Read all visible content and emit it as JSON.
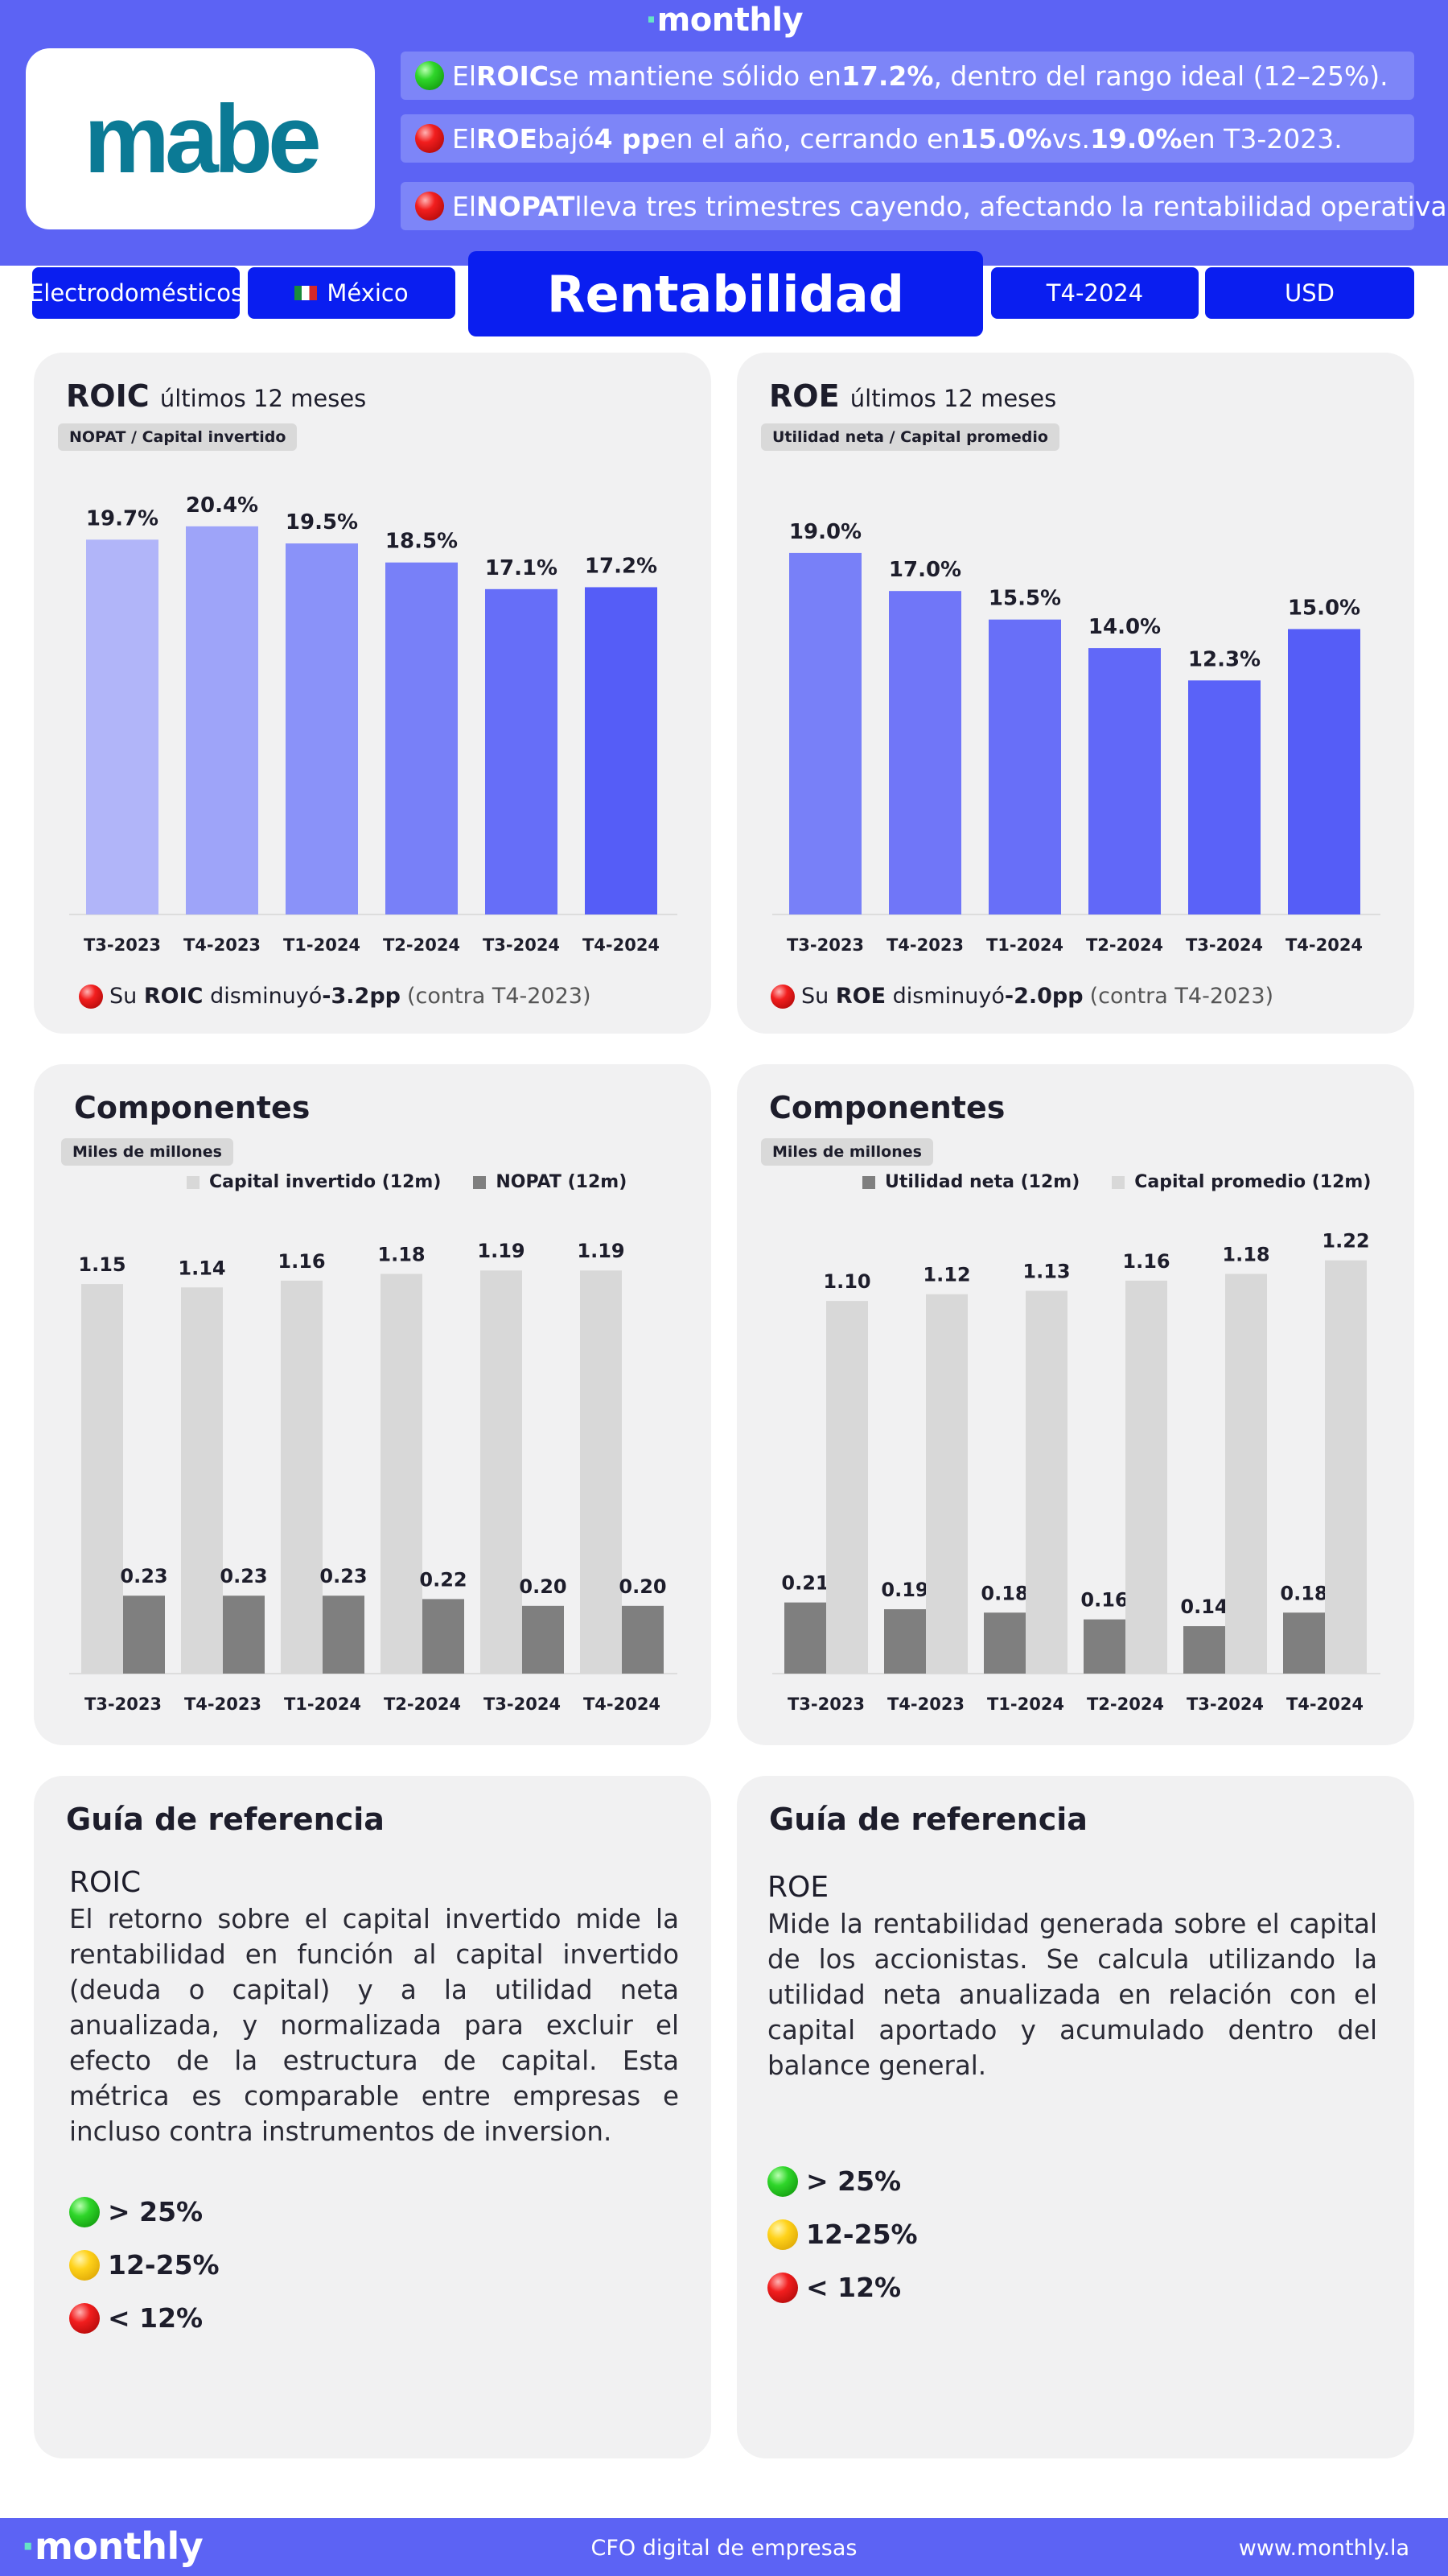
{
  "header": {
    "brand": "monthly",
    "company_logo": "mabe",
    "insights": [
      {
        "status": "green",
        "pre": "El ",
        "metric": "ROIC",
        "mid": " se mantiene sólido en ",
        "value": "17.2%",
        "post": ", dentro del rango ideal (12–25%)."
      },
      {
        "status": "red",
        "pre": "El ",
        "metric": "ROE",
        "mid": " bajó ",
        "value": "4 pp",
        "post": " en el año, cerrando en ",
        "value2": "15.0%",
        "post2": " vs. ",
        "value3": "19.0%",
        "post3": " en T3-2023."
      },
      {
        "status": "red",
        "pre": "El ",
        "metric": "NOPAT",
        "mid": " lleva tres trimestres cayendo, afectando la rentabilidad operativa."
      }
    ],
    "pills": {
      "sector": "Electrodomésticos",
      "country": "México",
      "title": "Rentabilidad",
      "period": "T4-2024",
      "currency": "USD"
    }
  },
  "roic_panel": {
    "title": "ROIC",
    "subtitle": "últimos 12 meses",
    "tag": "NOPAT / Capital invertido",
    "summary": {
      "status": "red",
      "pre": "Su ",
      "metric": "ROIC",
      "mid": " disminuyó ",
      "value": "-3.2pp",
      "post": "(contra T4-2023)"
    }
  },
  "roe_panel": {
    "title": "ROE",
    "subtitle": "últimos 12 meses",
    "tag": "Utilidad neta / Capital promedio",
    "summary": {
      "status": "red",
      "pre": "Su ",
      "metric": "ROE",
      "mid": " disminuyó ",
      "value": "-2.0pp",
      "post": "(contra T4-2023)"
    }
  },
  "comp_left": {
    "title": "Componentes",
    "tag": "Miles de millones"
  },
  "comp_right": {
    "title": "Componentes",
    "tag": "Miles de millones"
  },
  "chart_data": [
    {
      "type": "bar",
      "title": "ROIC",
      "categories": [
        "T3-2023",
        "T4-2023",
        "T1-2024",
        "T2-2024",
        "T3-2024",
        "T4-2024"
      ],
      "values": [
        19.7,
        20.4,
        19.5,
        18.5,
        17.1,
        17.2
      ],
      "labels": [
        "19.7%",
        "20.4%",
        "19.5%",
        "18.5%",
        "17.1%",
        "17.2%"
      ],
      "colors": [
        "#b1b5f9",
        "#9ea4f9",
        "#8a92f9",
        "#7880f8",
        "#666ef8",
        "#555df7"
      ],
      "ylim": [
        0,
        22
      ]
    },
    {
      "type": "bar",
      "title": "ROE",
      "categories": [
        "T3-2023",
        "T4-2023",
        "T1-2024",
        "T2-2024",
        "T3-2024",
        "T4-2024"
      ],
      "values": [
        19.0,
        17.0,
        15.5,
        14.0,
        12.3,
        15.0
      ],
      "labels": [
        "19.0%",
        "17.0%",
        "15.5%",
        "14.0%",
        "12.3%",
        "15.0%"
      ],
      "colors": [
        "#7880f8",
        "#7076f8",
        "#686ff8",
        "#6168f8",
        "#5a62f8",
        "#555df7"
      ],
      "ylim": [
        0,
        22
      ]
    },
    {
      "type": "bar",
      "categories": [
        "T3-2023",
        "T4-2023",
        "T1-2024",
        "T2-2024",
        "T3-2024",
        "T4-2024"
      ],
      "series": [
        {
          "name": "Capital invertido (12m)",
          "color": "#d8d8d8",
          "values": [
            1.15,
            1.14,
            1.16,
            1.18,
            1.19,
            1.19
          ],
          "labels": [
            "1.15",
            "1.14",
            "1.16",
            "1.18",
            "1.19",
            "1.19"
          ]
        },
        {
          "name": "NOPAT (12m)",
          "color": "#7f7f7f",
          "values": [
            0.23,
            0.23,
            0.23,
            0.22,
            0.2,
            0.2
          ],
          "labels": [
            "0.23",
            "0.23",
            "0.23",
            "0.22",
            "0.20",
            "0.20"
          ]
        }
      ],
      "ylim": [
        0,
        1.25
      ],
      "legend": "top"
    },
    {
      "type": "bar",
      "categories": [
        "T3-2023",
        "T4-2023",
        "T1-2024",
        "T2-2024",
        "T3-2024",
        "T4-2024"
      ],
      "series": [
        {
          "name": "Utilidad neta (12m)",
          "color": "#7f7f7f",
          "values": [
            0.21,
            0.19,
            0.18,
            0.16,
            0.14,
            0.18
          ],
          "labels": [
            "0.21",
            "0.19",
            "0.18",
            "0.16",
            "0.14",
            "0.18"
          ]
        },
        {
          "name": "Capital promedio (12m)",
          "color": "#d8d8d8",
          "values": [
            1.1,
            1.12,
            1.13,
            1.16,
            1.18,
            1.22
          ],
          "labels": [
            "1.10",
            "1.12",
            "1.13",
            "1.16",
            "1.18",
            "1.22"
          ]
        }
      ],
      "ylim": [
        0,
        1.25
      ],
      "legend": "top"
    }
  ],
  "guide_left": {
    "title": "Guía de referencia",
    "metric": "ROIC",
    "text": "El retorno sobre el capital invertido mide la rentabilidad en función al capital invertido (deuda o capital) y a la utilidad neta anualizada, y normalizada para excluir el efecto de la estructura de capital. Esta métrica es comparable entre empresas e incluso contra instrumentos de inversion.",
    "scale": [
      {
        "status": "green",
        "label": "> 25%"
      },
      {
        "status": "yellow",
        "label": "12-25%"
      },
      {
        "status": "red",
        "label": "< 12%"
      }
    ]
  },
  "guide_right": {
    "title": "Guía de referencia",
    "metric": "ROE",
    "text": "Mide la rentabilidad generada sobre el capital de los accionistas. Se calcula utilizando la utilidad neta anualizada en relación con el capital aportado y acumulado dentro del balance general.",
    "scale": [
      {
        "status": "green",
        "label": "> 25%"
      },
      {
        "status": "yellow",
        "label": "12-25%"
      },
      {
        "status": "red",
        "label": "< 12%"
      }
    ]
  },
  "footer": {
    "brand": "monthly",
    "tagline": "CFO digital de empresas",
    "url": "www.monthly.la"
  }
}
